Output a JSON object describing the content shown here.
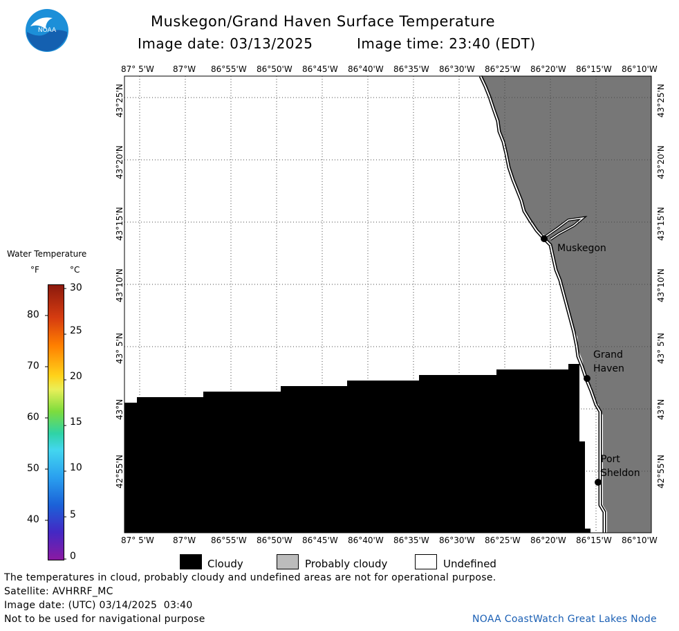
{
  "header": {
    "title": "Muskegon/Grand Haven Surface Temperature",
    "image_date": "Image date: 03/13/2025",
    "image_time": "Image time: 23:40 (EDT)",
    "logo_text": "NOAA"
  },
  "map": {
    "top_lon_labels": [
      "87° 5'W",
      "87°W",
      "86°55'W",
      "86°50'W",
      "86°45'W",
      "86°40'W",
      "86°35'W",
      "86°30'W",
      "86°25'W",
      "86°20'W",
      "86°15'W",
      "86°10'W"
    ],
    "lat_labels": [
      "43°25'N",
      "43°20'N",
      "43°15'N",
      "43°10'N",
      "43° 5'N",
      "43°N",
      "42°55'N"
    ],
    "places": [
      {
        "name": "Muskegon"
      },
      {
        "name": "Grand\nHaven"
      },
      {
        "name": "Port\nSheldon"
      }
    ]
  },
  "colorbar": {
    "title": "Water Temperature",
    "unit_f": "°F",
    "unit_c": "°C",
    "f_ticks": [
      "80",
      "70",
      "60",
      "50",
      "40"
    ],
    "c_ticks": [
      "30",
      "25",
      "20",
      "15",
      "10",
      "5",
      "0"
    ]
  },
  "legend": [
    {
      "label": "Cloudy",
      "color": "#000000"
    },
    {
      "label": "Probably cloudy",
      "color": "#bcbcbc"
    },
    {
      "label": "Undefined",
      "color": "#ffffff"
    }
  ],
  "footer": {
    "disclaimer": "The temperatures in cloud, probably cloudy and undefined areas are not for operational purpose.",
    "satellite": "Satellite: AVHRRF_MC",
    "utc_date": "Image date: (UTC) 03/14/2025  03:40",
    "nav_warning": "Not to be used for navigational purpose",
    "credit": "NOAA CoastWatch Great Lakes Node"
  },
  "colors": {
    "land": "#777777",
    "credit": "#1a5fb4"
  }
}
